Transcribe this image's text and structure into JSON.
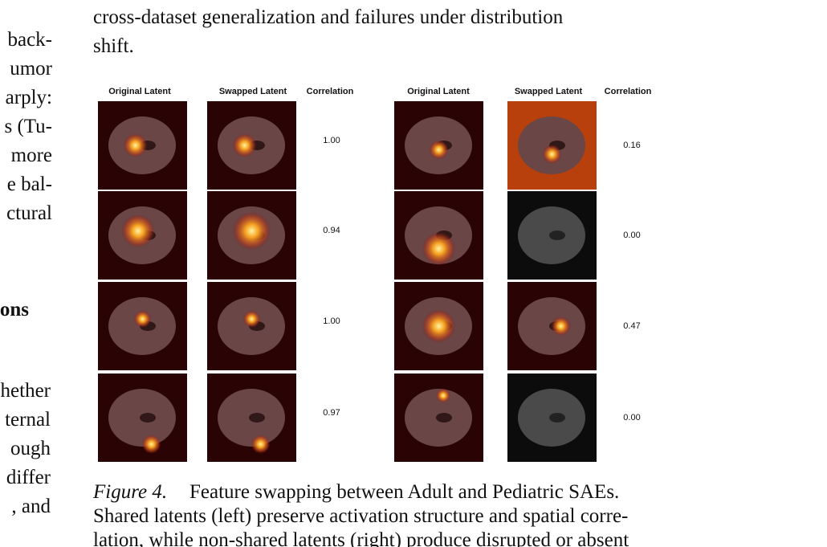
{
  "left_column": {
    "lines_top": [
      "back-",
      "umor",
      "arply:",
      "s (Tu-",
      "more",
      "e bal-",
      "ctural"
    ],
    "heading": "ons",
    "lines_bottom": [
      "hether",
      "ternal",
      "ough",
      "differ",
      ", and"
    ]
  },
  "body": {
    "lines": [
      "cross-dataset generalization and failures under distribution",
      "shift."
    ]
  },
  "figure": {
    "panels": [
      {
        "headers": [
          "Original Latent",
          "Swapped Latent",
          "Correlation"
        ],
        "correlations": [
          "1.00",
          "0.94",
          "1.00",
          "0.97"
        ]
      },
      {
        "headers": [
          "Original Latent",
          "Swapped Latent",
          "Correlation"
        ],
        "correlations": [
          "0.16",
          "0.00",
          "0.47",
          "0.00"
        ]
      }
    ]
  },
  "caption": {
    "label": "Figure 4.",
    "lines": [
      "Feature swapping between Adult and Pediatric SAEs.",
      "Shared latents (left) preserve activation structure and spatial corre-",
      "lation, while non-shared latents (right) produce disrupted or absent"
    ]
  }
}
